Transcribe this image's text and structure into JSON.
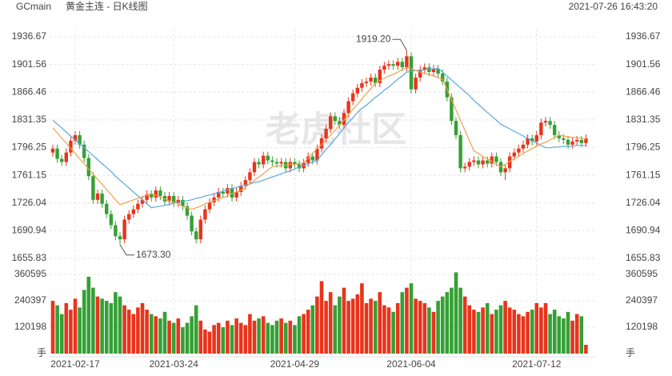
{
  "chart_data": {
    "type": "candlestick",
    "symbol": "GCmain",
    "title": "黄金主连 - 日K线图",
    "timestamp": "2021-07-26 16:43:20",
    "watermark": "老虎社区",
    "categories": [
      null,
      null,
      null,
      null,
      null,
      "2021-02-17",
      null,
      null,
      null,
      null,
      null,
      null,
      null,
      null,
      null,
      null,
      null,
      null,
      null,
      null,
      null,
      null,
      null,
      null,
      null,
      null,
      null,
      "2021-03-24",
      null,
      null,
      null,
      null,
      null,
      null,
      null,
      null,
      null,
      null,
      null,
      null,
      null,
      null,
      null,
      null,
      null,
      null,
      null,
      null,
      null,
      null,
      null,
      null,
      null,
      null,
      "2021-04-29",
      null,
      null,
      null,
      null,
      null,
      null,
      null,
      null,
      null,
      null,
      null,
      null,
      null,
      null,
      null,
      null,
      null,
      null,
      null,
      null,
      null,
      null,
      null,
      null,
      null,
      "2021-06-04",
      null,
      null,
      null,
      null,
      null,
      null,
      null,
      null,
      null,
      null,
      null,
      null,
      null,
      null,
      null,
      null,
      null,
      null,
      null,
      null,
      null,
      null,
      null,
      null,
      null,
      null,
      null,
      "2021-07-12",
      null,
      null,
      null,
      null,
      null,
      null,
      null,
      null,
      null,
      null,
      null
    ],
    "open": [
      1790,
      1795,
      1782,
      1778,
      1790,
      1805,
      1812,
      1800,
      1783,
      1760,
      1730,
      1738,
      1725,
      1712,
      1698,
      1684,
      1680,
      1705,
      1712,
      1718,
      1725,
      1730,
      1737,
      1733,
      1742,
      1735,
      1728,
      1735,
      1726,
      1730,
      1722,
      1710,
      1690,
      1680,
      1705,
      1718,
      1727,
      1733,
      1740,
      1738,
      1745,
      1733,
      1740,
      1748,
      1755,
      1765,
      1778,
      1775,
      1786,
      1780,
      1778,
      1776,
      1778,
      1770,
      1778,
      1775,
      1770,
      1777,
      1785,
      1780,
      1795,
      1808,
      1820,
      1836,
      1830,
      1825,
      1840,
      1855,
      1865,
      1872,
      1878,
      1880,
      1885,
      1878,
      1895,
      1900,
      1902,
      1900,
      1905,
      1898,
      1912,
      1870,
      1885,
      1895,
      1898,
      1892,
      1896,
      1890,
      1880,
      1860,
      1830,
      1812,
      1770,
      1772,
      1778,
      1780,
      1775,
      1780,
      1776,
      1785,
      1778,
      1765,
      1770,
      1785,
      1790,
      1795,
      1800,
      1808,
      1804,
      1812,
      1828,
      1830,
      1825,
      1812,
      1808,
      1806,
      1800,
      1804,
      1806,
      1802
    ],
    "high": [
      1800,
      1800,
      1787,
      1795,
      1810,
      1817,
      1817,
      1805,
      1788,
      1765,
      1743,
      1743,
      1730,
      1717,
      1703,
      1689,
      1710,
      1717,
      1723,
      1730,
      1735,
      1742,
      1742,
      1747,
      1747,
      1740,
      1740,
      1740,
      1735,
      1735,
      1727,
      1715,
      1695,
      1710,
      1723,
      1732,
      1738,
      1745,
      1745,
      1750,
      1750,
      1745,
      1753,
      1760,
      1770,
      1783,
      1783,
      1791,
      1791,
      1785,
      1783,
      1783,
      1783,
      1783,
      1783,
      1780,
      1782,
      1790,
      1790,
      1800,
      1813,
      1825,
      1841,
      1841,
      1835,
      1845,
      1860,
      1870,
      1877,
      1883,
      1885,
      1890,
      1890,
      1900,
      1905,
      1907,
      1907,
      1910,
      1910,
      1919.2,
      1917,
      1890,
      1900,
      1903,
      1903,
      1901,
      1901,
      1895,
      1885,
      1865,
      1835,
      1817,
      1777,
      1783,
      1785,
      1785,
      1785,
      1785,
      1790,
      1790,
      1783,
      1775,
      1790,
      1795,
      1800,
      1805,
      1813,
      1813,
      1817,
      1833,
      1835,
      1835,
      1830,
      1817,
      1813,
      1811,
      1809,
      1811,
      1811,
      1813
    ],
    "low": [
      1785,
      1777,
      1773,
      1773,
      1785,
      1800,
      1795,
      1778,
      1755,
      1725,
      1725,
      1720,
      1707,
      1693,
      1679,
      1673.3,
      1675,
      1700,
      1707,
      1713,
      1720,
      1725,
      1728,
      1728,
      1730,
      1723,
      1723,
      1721,
      1721,
      1717,
      1705,
      1685,
      1675,
      1675,
      1700,
      1713,
      1722,
      1728,
      1733,
      1733,
      1728,
      1728,
      1735,
      1743,
      1750,
      1760,
      1770,
      1770,
      1775,
      1773,
      1771,
      1771,
      1765,
      1765,
      1770,
      1765,
      1765,
      1772,
      1775,
      1775,
      1790,
      1803,
      1815,
      1825,
      1820,
      1820,
      1835,
      1850,
      1860,
      1867,
      1873,
      1875,
      1873,
      1873,
      1890,
      1895,
      1895,
      1895,
      1893,
      1893,
      1865,
      1865,
      1880,
      1890,
      1887,
      1887,
      1885,
      1875,
      1855,
      1825,
      1807,
      1765,
      1765,
      1767,
      1773,
      1770,
      1770,
      1771,
      1771,
      1773,
      1760,
      1755,
      1765,
      1780,
      1785,
      1790,
      1795,
      1799,
      1799,
      1807,
      1823,
      1820,
      1807,
      1803,
      1801,
      1795,
      1795,
      1799,
      1797,
      1797
    ],
    "close": [
      1795,
      1782,
      1778,
      1790,
      1805,
      1812,
      1800,
      1783,
      1760,
      1730,
      1738,
      1725,
      1712,
      1698,
      1684,
      1680,
      1705,
      1712,
      1718,
      1725,
      1730,
      1737,
      1733,
      1742,
      1735,
      1728,
      1735,
      1726,
      1730,
      1722,
      1710,
      1690,
      1680,
      1705,
      1718,
      1727,
      1733,
      1740,
      1738,
      1745,
      1733,
      1740,
      1748,
      1755,
      1765,
      1778,
      1775,
      1786,
      1780,
      1778,
      1776,
      1778,
      1770,
      1778,
      1775,
      1770,
      1777,
      1785,
      1780,
      1795,
      1808,
      1820,
      1836,
      1830,
      1825,
      1840,
      1855,
      1865,
      1872,
      1878,
      1880,
      1885,
      1878,
      1895,
      1900,
      1902,
      1900,
      1905,
      1898,
      1912,
      1870,
      1885,
      1895,
      1898,
      1892,
      1896,
      1890,
      1880,
      1860,
      1830,
      1812,
      1770,
      1772,
      1778,
      1780,
      1775,
      1780,
      1776,
      1785,
      1778,
      1765,
      1770,
      1785,
      1790,
      1795,
      1800,
      1808,
      1804,
      1812,
      1828,
      1830,
      1825,
      1812,
      1808,
      1806,
      1800,
      1804,
      1806,
      1802,
      1808
    ],
    "ylim": [
      1655.83,
      1936.67
    ],
    "yticks": [
      1655.83,
      1690.94,
      1726.04,
      1761.15,
      1796.25,
      1831.35,
      1866.46,
      1901.56,
      1936.67
    ],
    "high_label": "1919.20",
    "low_label": "1673.30",
    "up_color": "#e8341c",
    "down_color": "#35a035",
    "grid": true,
    "ma_lines": [
      {
        "color": "#5ba8dc",
        "values": [
          1831,
          1826,
          1821,
          1816,
          1811,
          1806,
          1801,
          1796,
          1791,
          1786,
          1781,
          1776,
          1771,
          1766,
          1760,
          1755,
          1750,
          1745,
          1740,
          1735,
          1730,
          1725,
          1720,
          1721,
          1722,
          1723,
          1724,
          1726,
          1727,
          1728,
          1729,
          1730,
          1732,
          1733,
          1735,
          1736,
          1738,
          1739,
          1741,
          1743,
          1744,
          1746,
          1747,
          1749,
          1750,
          1752,
          1753,
          1755,
          1757,
          1759,
          1761,
          1763,
          1765,
          1767,
          1769,
          1772,
          1774,
          1776,
          1778,
          1780,
          1787,
          1794,
          1800,
          1807,
          1814,
          1821,
          1828,
          1834,
          1841,
          1846,
          1850,
          1855,
          1860,
          1864,
          1869,
          1873,
          1878,
          1883,
          1887,
          1892,
          1893,
          1894,
          1894,
          1895,
          1896,
          1896,
          1897,
          1892,
          1887,
          1882,
          1877,
          1872,
          1867,
          1862,
          1856,
          1851,
          1846,
          1841,
          1836,
          1831,
          1826,
          1823,
          1820,
          1817,
          1814,
          1811,
          1808,
          1805,
          1802,
          1799,
          1796,
          1796,
          1797,
          1797,
          1798,
          1798,
          1798,
          1799,
          1799,
          1799
        ]
      },
      {
        "color": "#f2a04a",
        "values": [
          1821,
          1815,
          1808,
          1802,
          1795,
          1789,
          1782,
          1776,
          1769,
          1763,
          1756,
          1750,
          1743,
          1737,
          1730,
          1724,
          1726,
          1728,
          1730,
          1732,
          1734,
          1736,
          1738,
          1736,
          1734,
          1731,
          1729,
          1727,
          1725,
          1722,
          1720,
          1718,
          1720,
          1722,
          1725,
          1727,
          1729,
          1731,
          1733,
          1735,
          1738,
          1740,
          1742,
          1746,
          1751,
          1755,
          1759,
          1763,
          1768,
          1772,
          1773,
          1773,
          1774,
          1775,
          1775,
          1776,
          1777,
          1783,
          1789,
          1795,
          1800,
          1806,
          1812,
          1818,
          1825,
          1831,
          1838,
          1845,
          1851,
          1858,
          1865,
          1871,
          1878,
          1881,
          1884,
          1887,
          1889,
          1892,
          1895,
          1898,
          1896,
          1894,
          1892,
          1890,
          1889,
          1887,
          1885,
          1883,
          1870,
          1857,
          1844,
          1831,
          1818,
          1805,
          1792,
          1789,
          1785,
          1782,
          1779,
          1775,
          1772,
          1775,
          1779,
          1782,
          1785,
          1789,
          1792,
          1795,
          1798,
          1801,
          1803,
          1806,
          1809,
          1812,
          1811,
          1810,
          1809,
          1809,
          1808,
          1807
        ]
      }
    ],
    "volume": {
      "values": [
        240000,
        220000,
        180000,
        230000,
        200000,
        250000,
        210000,
        290000,
        350000,
        300000,
        260000,
        250000,
        240000,
        230000,
        280000,
        260000,
        220000,
        200000,
        180000,
        210000,
        230000,
        200000,
        180000,
        170000,
        160000,
        190000,
        150000,
        140000,
        160000,
        120000,
        140000,
        170000,
        220000,
        150000,
        110000,
        100000,
        130000,
        140000,
        120000,
        150000,
        130000,
        160000,
        140000,
        130000,
        180000,
        150000,
        160000,
        170000,
        140000,
        130000,
        150000,
        160000,
        140000,
        150000,
        130000,
        170000,
        180000,
        200000,
        220000,
        260000,
        330000,
        240000,
        280000,
        220000,
        260000,
        300000,
        240000,
        250000,
        270000,
        320000,
        230000,
        250000,
        240000,
        280000,
        220000,
        210000,
        190000,
        230000,
        280000,
        300000,
        320000,
        250000,
        240000,
        230000,
        210000,
        190000,
        240000,
        260000,
        280000,
        300000,
        370000,
        300000,
        260000,
        220000,
        200000,
        190000,
        210000,
        230000,
        180000,
        200000,
        220000,
        240000,
        210000,
        200000,
        180000,
        170000,
        190000,
        200000,
        230000,
        210000,
        230000,
        180000,
        200000,
        170000,
        160000,
        190000,
        150000,
        180000,
        170000,
        40000
      ],
      "ylim": [
        0,
        378800
      ],
      "yticks": [
        {
          "value": 0,
          "label": "手"
        },
        120198,
        240397,
        360595
      ]
    }
  }
}
